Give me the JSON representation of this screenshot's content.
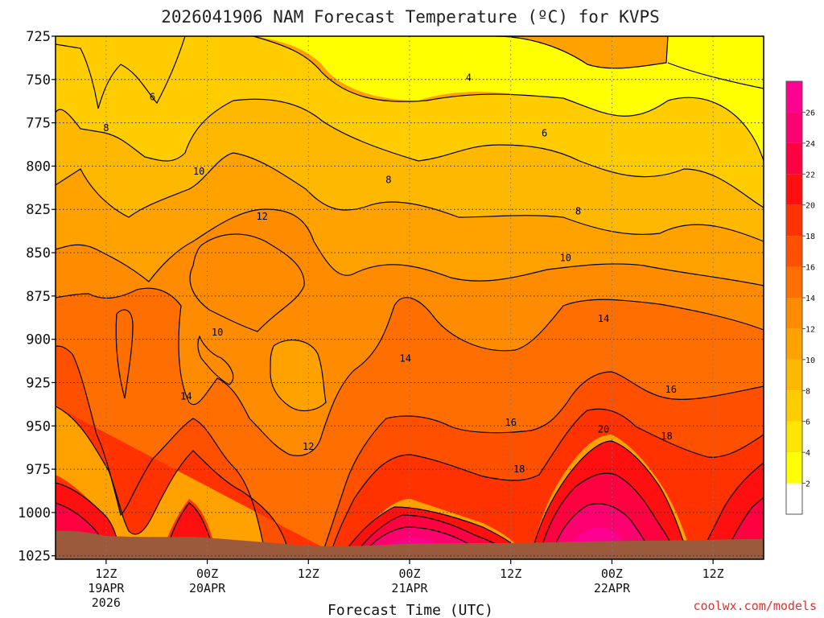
{
  "chart_data": {
    "type": "heatmap",
    "title": "2026041906 NAM Forecast Temperature (ºC) for KVPS",
    "xlabel": "Forecast Time (UTC)",
    "ylabel": "",
    "credit": "coolwx.com/models",
    "y_ticks": [
      "725",
      "750",
      "775",
      "800",
      "825",
      "850",
      "875",
      "900",
      "925",
      "950",
      "975",
      "1000",
      "1025"
    ],
    "y_values": [
      725,
      750,
      775,
      800,
      825,
      850,
      875,
      900,
      925,
      950,
      975,
      1000,
      1025
    ],
    "ylim": [
      725,
      1027
    ],
    "xlim_hours": [
      0,
      84
    ],
    "x_ticks": [
      {
        "hour": 6,
        "time": "12Z",
        "date": "19APR",
        "year": "2026"
      },
      {
        "hour": 18,
        "time": "00Z",
        "date": "20APR",
        "year": ""
      },
      {
        "hour": 30,
        "time": "12Z",
        "date": "",
        "year": ""
      },
      {
        "hour": 42,
        "time": "00Z",
        "date": "21APR",
        "year": ""
      },
      {
        "hour": 54,
        "time": "12Z",
        "date": "",
        "year": ""
      },
      {
        "hour": 66,
        "time": "00Z",
        "date": "22APR",
        "year": ""
      },
      {
        "hour": 78,
        "time": "12Z",
        "date": "",
        "year": ""
      }
    ],
    "colorbar": {
      "ticks": [
        "2",
        "4",
        "6",
        "8",
        "10",
        "12",
        "14",
        "16",
        "18",
        "20",
        "22",
        "24",
        "26"
      ],
      "levels": [
        2,
        4,
        6,
        8,
        10,
        12,
        14,
        16,
        18,
        20,
        22,
        24,
        26,
        28
      ],
      "colors": [
        "#ffff00",
        "#ffe600",
        "#ffcc00",
        "#ffb800",
        "#ffa200",
        "#ff8c00",
        "#ff6e00",
        "#ff5000",
        "#ff3200",
        "#ff0f0f",
        "#ff0040",
        "#ff0070",
        "#ff0090",
        "#ff0fa8"
      ]
    },
    "isotherms": [
      {
        "value": 4,
        "label": "4",
        "hour": 49,
        "p": 749
      },
      {
        "value": 6,
        "label": "6",
        "hour": 11.5,
        "p": 760
      },
      {
        "value": 6,
        "label": "6",
        "hour": 58,
        "p": 781
      },
      {
        "value": 8,
        "label": "8",
        "hour": 6,
        "p": 778
      },
      {
        "value": 8,
        "label": "8",
        "hour": 39.5,
        "p": 808
      },
      {
        "value": 8,
        "label": "8",
        "hour": 62,
        "p": 826
      },
      {
        "value": 10,
        "label": "10",
        "hour": 17,
        "p": 803
      },
      {
        "value": 10,
        "label": "10",
        "hour": 60.5,
        "p": 853
      },
      {
        "value": 10,
        "label": "10",
        "hour": 19.2,
        "p": 896
      },
      {
        "value": 12,
        "label": "12",
        "hour": 24.5,
        "p": 829
      },
      {
        "value": 12,
        "label": "12",
        "hour": 30,
        "p": 962
      },
      {
        "value": 14,
        "label": "14",
        "hour": 15.5,
        "p": 933
      },
      {
        "value": 14,
        "label": "14",
        "hour": 41.5,
        "p": 911
      },
      {
        "value": 14,
        "label": "14",
        "hour": 65,
        "p": 888
      },
      {
        "value": 16,
        "label": "16",
        "hour": 54,
        "p": 948
      },
      {
        "value": 16,
        "label": "16",
        "hour": 73,
        "p": 929
      },
      {
        "value": 18,
        "label": "18",
        "hour": 55,
        "p": 975
      },
      {
        "value": 18,
        "label": "18",
        "hour": 72.5,
        "p": 956
      },
      {
        "value": 20,
        "label": "20",
        "hour": 65,
        "p": 952
      }
    ],
    "terrain_color": "#9b5a3c"
  }
}
